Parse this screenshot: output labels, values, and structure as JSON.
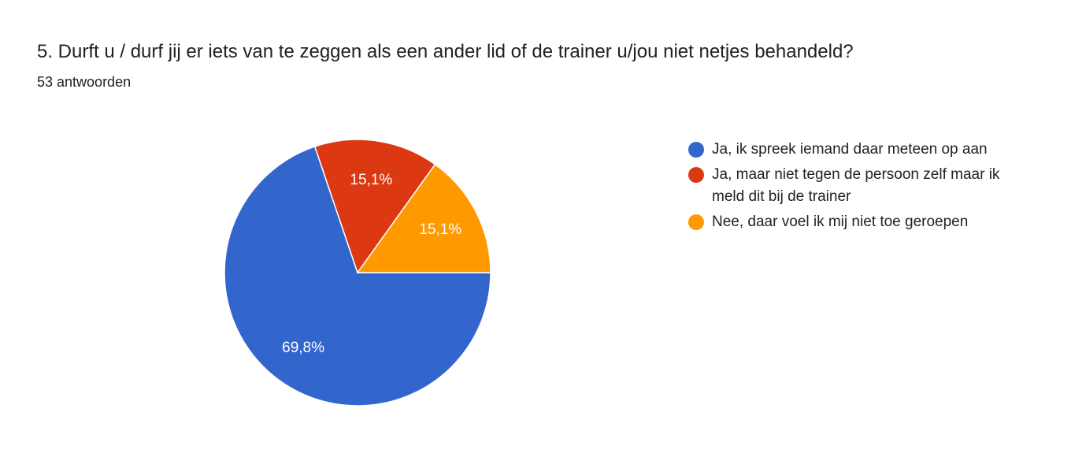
{
  "chart_data": {
    "type": "pie",
    "title": "5. Durft u / durf jij er iets van te zeggen als een ander lid of de trainer u/jou niet netjes behandeld?",
    "subtitle": "53 antwoorden",
    "categories": [
      "Ja, ik spreek iemand daar meteen op aan",
      "Ja, maar niet tegen de persoon zelf maar ik meld dit bij de trainer",
      "Nee, daar voel ik mij niet toe geroepen"
    ],
    "values": [
      69.8,
      15.1,
      15.1
    ],
    "value_labels": [
      "69,8%",
      "15,1%",
      "15,1%"
    ],
    "colors": [
      "#3366cc",
      "#dc3912",
      "#ff9900"
    ]
  }
}
